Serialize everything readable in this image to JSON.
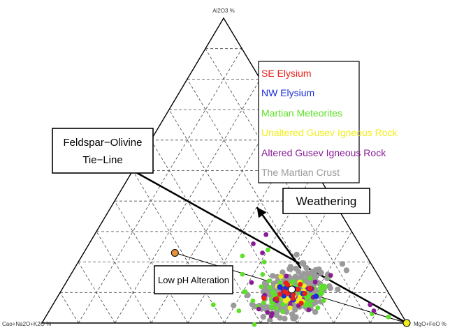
{
  "chart_data": {
    "type": "ternary-scatter",
    "vertices": {
      "top": "Al2O3 %",
      "left": "Cao+Na2O+K2O %",
      "right": "MgO+FeO %"
    },
    "grid": true,
    "grid_divisions": 10,
    "legend_position": "top-right",
    "legend": [
      {
        "label": "SE Elysium",
        "color": "#e8211b"
      },
      {
        "label": "NW Elysium",
        "color": "#1b2fd6"
      },
      {
        "label": "Martian Meteorites",
        "color": "#5ee02a"
      },
      {
        "label": "Unaltered Gusev Igneous Rock",
        "color": "#f2ee1c"
      },
      {
        "label": "Altered Gusev Igneous  Rock",
        "color": "#8a1a96"
      },
      {
        "label": "The Martian Crust",
        "color": "#9a9a9a"
      }
    ],
    "annotations": {
      "tie_line_label": [
        "Feldspar−Olivine",
        "Tie−Line"
      ],
      "weathering_label": "Weathering",
      "low_ph_label": "Low pH Alteration"
    },
    "tie_line": {
      "from": {
        "a": 0.5,
        "b": 0.5,
        "c": 0.0
      },
      "to": {
        "a": 0.0,
        "b": 0.0,
        "c": 1.0
      }
    },
    "weathering_arrow": {
      "from": {
        "a": 0.18,
        "b": 0.2,
        "c": 0.62
      },
      "to": {
        "a": 0.38,
        "b": 0.22,
        "c": 0.4
      }
    },
    "low_ph_line": {
      "from": {
        "a": 0.23,
        "b": 0.52,
        "c": 0.25
      },
      "to": {
        "a": 0.0,
        "b": 0.0,
        "c": 1.0
      }
    },
    "special_points": [
      {
        "name": "low-ph-endpoint",
        "a": 0.23,
        "b": 0.52,
        "c": 0.25,
        "color": "#e8913a"
      },
      {
        "name": "mgo-feo-endpoint",
        "a": 0.0,
        "b": 0.0,
        "c": 1.0,
        "color": "#f2ee1c"
      },
      {
        "name": "crust-composition",
        "a": 0.11,
        "b": 0.26,
        "c": 0.63,
        "color": "#ffffff"
      }
    ],
    "cluster": {
      "center": {
        "a": 0.1,
        "b": 0.26,
        "c": 0.64
      },
      "gray_count": 320,
      "green_count": 75,
      "purple_count": 28,
      "yellow_count": 22,
      "blue_count": 14,
      "red_count": 14
    },
    "scattered_points": [
      {
        "series": "Martian Meteorites",
        "a": 0.18,
        "b": 0.42,
        "c": 0.4
      },
      {
        "series": "Martian Meteorites",
        "a": 0.22,
        "b": 0.34,
        "c": 0.44
      },
      {
        "series": "Martian Meteorites",
        "a": 0.24,
        "b": 0.26,
        "c": 0.5
      },
      {
        "series": "Martian Meteorites",
        "a": 0.06,
        "b": 0.5,
        "c": 0.44
      },
      {
        "series": "Martian Meteorites",
        "a": 0.04,
        "b": 0.44,
        "c": 0.52
      },
      {
        "series": "Martian Meteorites",
        "a": 0.13,
        "b": 0.46,
        "c": 0.41
      },
      {
        "series": "Martian Meteorites",
        "a": 0.02,
        "b": 0.04,
        "c": 0.94
      },
      {
        "series": "Martian Meteorites",
        "a": 0.03,
        "b": 0.08,
        "c": 0.89
      },
      {
        "series": "Altered Gusev Igneous  Rock",
        "a": 0.29,
        "b": 0.24,
        "c": 0.47
      },
      {
        "series": "Altered Gusev Igneous  Rock",
        "a": 0.26,
        "b": 0.29,
        "c": 0.45
      },
      {
        "series": "Altered Gusev Igneous  Rock",
        "a": 0.23,
        "b": 0.28,
        "c": 0.49
      },
      {
        "series": "Altered Gusev Igneous  Rock",
        "a": 0.06,
        "b": 0.07,
        "c": 0.87
      },
      {
        "series": "Altered Gusev Igneous  Rock",
        "a": 0.04,
        "b": 0.07,
        "c": 0.89
      },
      {
        "series": "Martian Meteorites",
        "a": 0.2,
        "b": 0.29,
        "c": 0.51
      },
      {
        "series": "Martian Meteorites",
        "a": 0.16,
        "b": 0.37,
        "c": 0.47
      }
    ]
  }
}
